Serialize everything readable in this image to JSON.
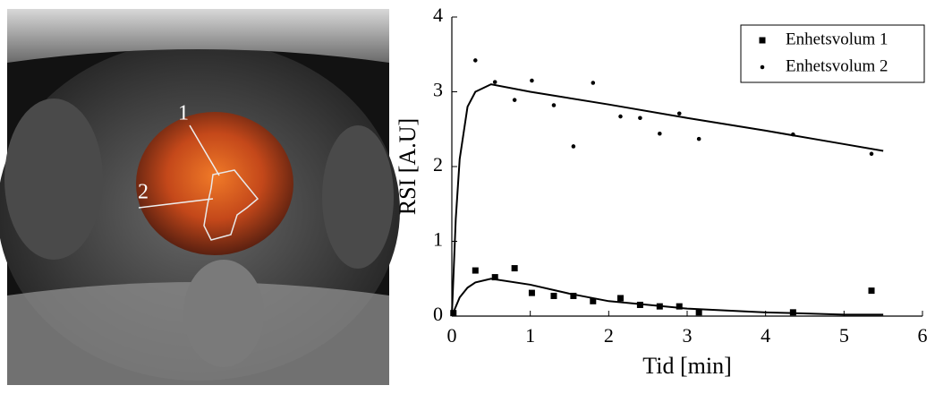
{
  "image": {
    "labels": [
      "1",
      "2"
    ]
  },
  "chart_data": {
    "type": "scatter",
    "xlabel": "Tid [min]",
    "ylabel": "RSI [A.U]",
    "xlim": [
      0,
      6
    ],
    "xticks": [
      0,
      1,
      2,
      3,
      4,
      5,
      6
    ],
    "ylim": [
      0,
      4
    ],
    "yticks": [
      0,
      1,
      2,
      3,
      4
    ],
    "legend": "upper right",
    "series": [
      {
        "name": "Enhetsvolum 1",
        "color": "#000000",
        "marker": "square",
        "x": [
          0.02,
          0.3,
          0.55,
          0.8,
          1.02,
          1.3,
          1.55,
          1.8,
          2.15,
          2.4,
          2.65,
          2.9,
          3.15,
          4.35,
          5.35
        ],
        "values": [
          0.04,
          0.61,
          0.52,
          0.64,
          0.31,
          0.27,
          0.27,
          0.2,
          0.24,
          0.15,
          0.13,
          0.13,
          0.05,
          0.05,
          0.34
        ]
      },
      {
        "name": "Enhetsvolum 2",
        "color": "#000000",
        "marker": "circle",
        "x": [
          0.3,
          0.55,
          0.8,
          1.02,
          1.3,
          1.55,
          1.8,
          2.15,
          2.4,
          2.65,
          2.9,
          3.15,
          4.35,
          5.35
        ],
        "values": [
          3.42,
          3.13,
          2.89,
          3.15,
          2.82,
          2.27,
          3.12,
          2.67,
          2.65,
          2.44,
          2.71,
          2.37,
          2.43,
          2.17
        ]
      }
    ],
    "fits": [
      {
        "color": "#000000",
        "x": [
          0,
          0.1,
          0.2,
          0.3,
          0.5,
          1,
          1.5,
          2,
          3,
          4,
          5,
          5.5
        ],
        "values": [
          0,
          0.25,
          0.38,
          0.45,
          0.5,
          0.42,
          0.3,
          0.2,
          0.1,
          0.05,
          0.02,
          0.02
        ]
      },
      {
        "color": "#000000",
        "x": [
          0,
          0.05,
          0.1,
          0.2,
          0.3,
          0.5,
          1,
          2,
          3,
          4,
          5,
          5.5
        ],
        "values": [
          0,
          1.3,
          2.1,
          2.8,
          3.0,
          3.1,
          3.0,
          2.83,
          2.65,
          2.48,
          2.3,
          2.21
        ]
      }
    ]
  }
}
